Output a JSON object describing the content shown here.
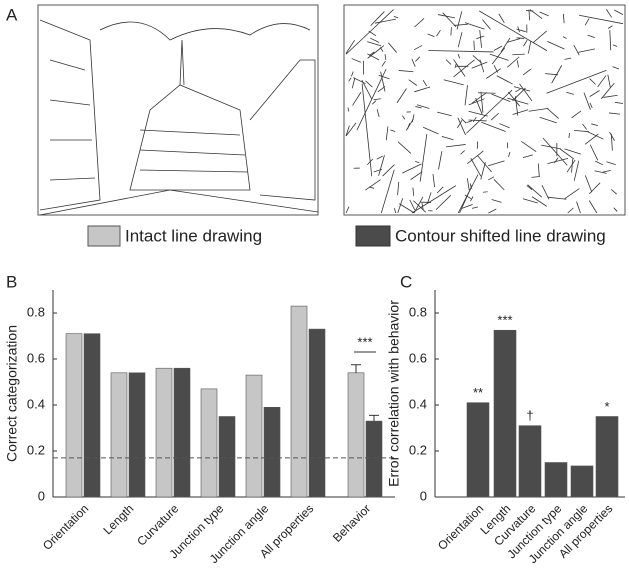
{
  "panel_labels": [
    "A",
    "B",
    "C"
  ],
  "chart_data": [
    {
      "type": "bar",
      "ylabel": "Correct categorization",
      "categories": [
        "Orientation",
        "Length",
        "Curvature",
        "Junction type",
        "Junction angle",
        "All properties",
        "Behavior"
      ],
      "series": [
        {
          "name": "Intact line drawing",
          "color": "#c6c6c6",
          "values": [
            0.71,
            0.54,
            0.56,
            0.47,
            0.53,
            0.83,
            0.54
          ],
          "errors": [
            null,
            null,
            null,
            null,
            null,
            null,
            0.035
          ]
        },
        {
          "name": "Contour shifted line drawing",
          "color": "#4b4b4b",
          "values": [
            0.71,
            0.54,
            0.56,
            0.35,
            0.39,
            0.73,
            0.33
          ],
          "errors": [
            null,
            null,
            null,
            null,
            null,
            null,
            0.025
          ]
        }
      ],
      "chance_level": 0.17,
      "annotation": "***",
      "ylim": [
        0,
        0.9
      ],
      "yticks": [
        0,
        0.2,
        0.4,
        0.6,
        0.8
      ]
    },
    {
      "type": "bar",
      "ylabel": "Error correlation with behavior",
      "categories": [
        "Orientation",
        "Length",
        "Curvature",
        "Junction type",
        "Junction angle",
        "All properties"
      ],
      "color": "#4b4b4b",
      "values": [
        0.41,
        0.725,
        0.31,
        0.15,
        0.135,
        0.35
      ],
      "annotations": [
        "**",
        "***",
        "†",
        null,
        null,
        "*"
      ],
      "ylim": [
        0,
        0.9
      ],
      "yticks": [
        0,
        0.2,
        0.4,
        0.6,
        0.8
      ]
    }
  ]
}
